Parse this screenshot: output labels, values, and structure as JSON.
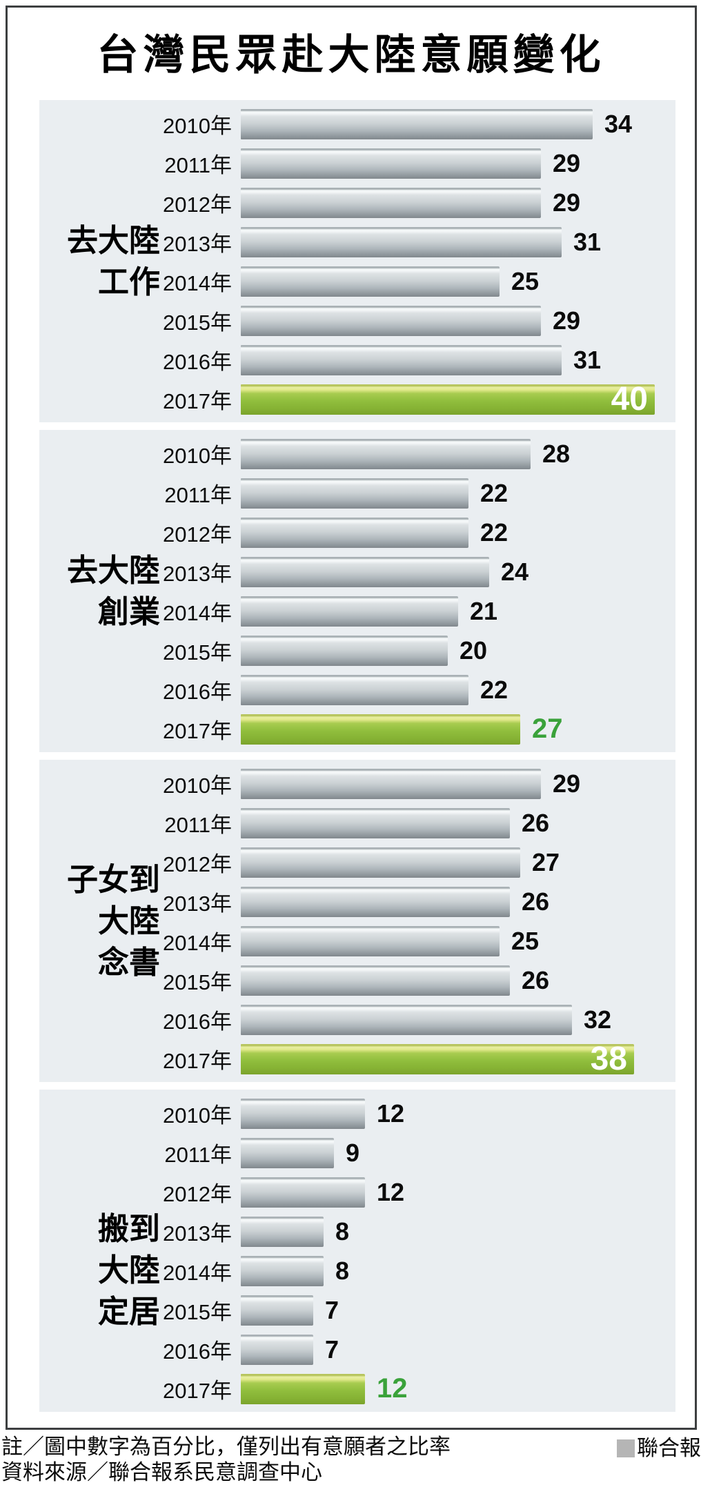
{
  "title": "台灣民眾赴大陸意願變化",
  "chart_data": {
    "type": "bar",
    "orientation": "horizontal",
    "title": "台灣民眾赴大陸意願變化",
    "unit": "percent",
    "value_axis_range": [
      0,
      40
    ],
    "max_value": 40,
    "grid": false,
    "legend": "none",
    "categories": [
      "2010年",
      "2011年",
      "2012年",
      "2013年",
      "2014年",
      "2015年",
      "2016年",
      "2017年"
    ],
    "series": [
      {
        "name": "去大陸工作",
        "name_lines": [
          "去大陸",
          "工作"
        ],
        "values": [
          34,
          29,
          29,
          31,
          25,
          29,
          31,
          40
        ],
        "highlight_index": 7,
        "highlight_label_inside": true
      },
      {
        "name": "去大陸創業",
        "name_lines": [
          "去大陸",
          "創業"
        ],
        "values": [
          28,
          22,
          22,
          24,
          21,
          20,
          22,
          27
        ],
        "highlight_index": 7,
        "highlight_label_inside": false
      },
      {
        "name": "子女到大陸念書",
        "name_lines": [
          "子女到",
          "大陸",
          "念書"
        ],
        "values": [
          29,
          26,
          27,
          26,
          25,
          26,
          32,
          38
        ],
        "highlight_index": 7,
        "highlight_label_inside": true
      },
      {
        "name": "搬到大陸定居",
        "name_lines": [
          "搬到",
          "大陸",
          "定居"
        ],
        "values": [
          12,
          9,
          12,
          8,
          8,
          7,
          7,
          12
        ],
        "highlight_index": 7,
        "highlight_label_inside": false
      }
    ],
    "colors": {
      "panel_background": "#eaeef1",
      "bar_gray_light": "#f3f6f7",
      "bar_gray_mid": "#cbd1d4",
      "bar_gray_dark": "#80878c",
      "bar_green_highlight": "#e2e98c",
      "bar_green_mid": "#90be3d",
      "bar_green_dark": "#7ba32c",
      "value_text": "#0b0b0b",
      "highlight_value_inside_text": "#ffffff",
      "highlight_value_outside_text": "#3aa23a"
    }
  },
  "footer": {
    "note": "註／圖中數字為百分比，僅列出有意願者之比率",
    "source": "資料來源／聯合報系民意調查中心",
    "brand": "聯合報"
  }
}
